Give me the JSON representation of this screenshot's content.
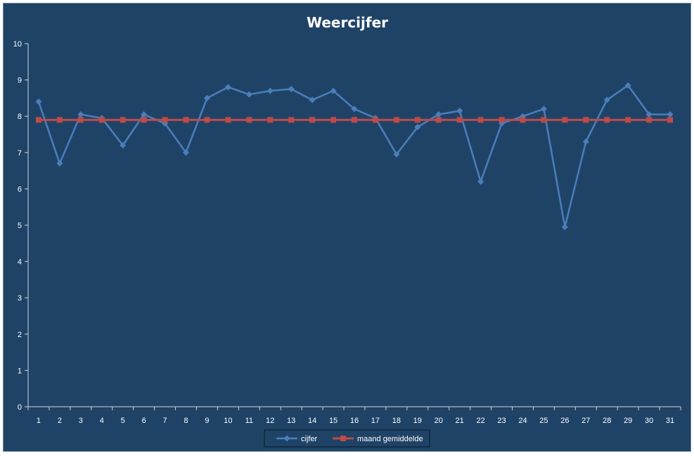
{
  "chart_data": {
    "type": "line",
    "title": "Weercijfer",
    "xlabel": "",
    "ylabel": "",
    "categories": [
      "1",
      "2",
      "3",
      "4",
      "5",
      "6",
      "7",
      "8",
      "9",
      "10",
      "11",
      "12",
      "13",
      "14",
      "15",
      "16",
      "17",
      "18",
      "19",
      "20",
      "21",
      "22",
      "23",
      "24",
      "25",
      "26",
      "27",
      "28",
      "29",
      "30",
      "31"
    ],
    "ylim": [
      0,
      10
    ],
    "yticks": [
      "0",
      "1",
      "2",
      "3",
      "4",
      "5",
      "6",
      "7",
      "8",
      "9",
      "10"
    ],
    "grid": false,
    "legend_position": "bottom",
    "series": [
      {
        "name": "cijfer",
        "color": "#4a7ebb",
        "marker": "diamond",
        "values": [
          8.4,
          6.7,
          8.05,
          7.95,
          7.2,
          8.05,
          7.8,
          7.0,
          8.5,
          8.8,
          8.6,
          8.7,
          8.75,
          8.45,
          8.7,
          8.2,
          7.95,
          6.95,
          7.7,
          8.05,
          8.15,
          6.2,
          7.8,
          8.0,
          8.2,
          4.95,
          7.3,
          8.45,
          8.85,
          8.05,
          8.05
        ]
      },
      {
        "name": "maand gemiddelde",
        "color": "#be4b48",
        "marker": "square",
        "values": [
          7.9,
          7.9,
          7.9,
          7.9,
          7.9,
          7.9,
          7.9,
          7.9,
          7.9,
          7.9,
          7.9,
          7.9,
          7.9,
          7.9,
          7.9,
          7.9,
          7.9,
          7.9,
          7.9,
          7.9,
          7.9,
          7.9,
          7.9,
          7.9,
          7.9,
          7.9,
          7.9,
          7.9,
          7.9,
          7.9,
          7.9
        ]
      }
    ]
  },
  "colors": {
    "background": "#1f4367",
    "axis": "#c9d3de",
    "text": "#ffffff"
  }
}
